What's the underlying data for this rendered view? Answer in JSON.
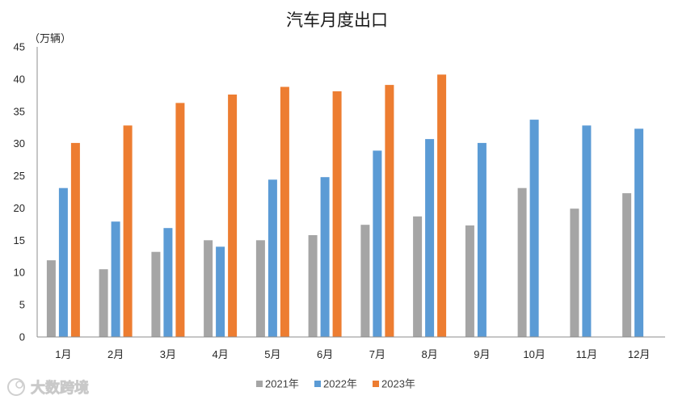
{
  "chart_data": {
    "type": "bar",
    "title": "汽车月度出口",
    "ylabel": "（万辆）",
    "xlabel": "",
    "categories": [
      "1月",
      "2月",
      "3月",
      "4月",
      "5月",
      "6月",
      "7月",
      "8月",
      "9月",
      "10月",
      "11月",
      "12月"
    ],
    "series": [
      {
        "name": "2021年",
        "color": "#A5A5A5",
        "values": [
          11.9,
          10.5,
          13.2,
          15.0,
          15.0,
          15.8,
          17.4,
          18.7,
          17.3,
          23.1,
          19.9,
          22.3
        ]
      },
      {
        "name": "2022年",
        "color": "#5B9BD5",
        "values": [
          23.1,
          17.9,
          16.9,
          14.0,
          24.4,
          24.8,
          28.9,
          30.7,
          30.1,
          33.7,
          32.8,
          32.3
        ]
      },
      {
        "name": "2023年",
        "color": "#ED7D31",
        "values": [
          30.1,
          32.8,
          36.3,
          37.6,
          38.8,
          38.1,
          39.1,
          40.7,
          null,
          null,
          null,
          null
        ]
      }
    ],
    "ylim": [
      0,
      45
    ],
    "yticks": [
      0,
      5,
      10,
      15,
      20,
      25,
      30,
      35,
      40,
      45
    ],
    "grid": false,
    "legend": "bottom"
  },
  "watermark": {
    "text": "大数跨境"
  }
}
